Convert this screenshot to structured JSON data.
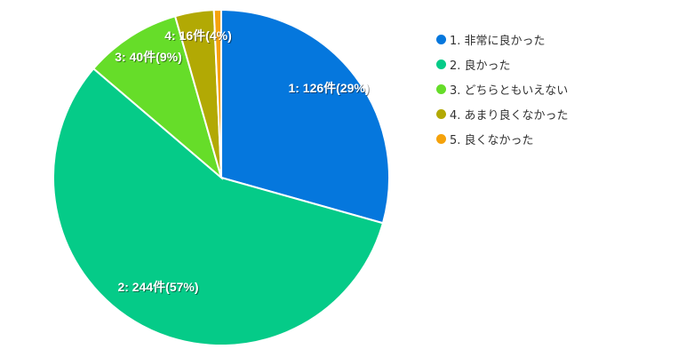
{
  "chart_data": {
    "type": "pie",
    "title": "",
    "categories": [
      "1. 非常に良かった",
      "2. 良かった",
      "3. どちらともいえない",
      "4. あまり良くなかった",
      "5. 良くなかった"
    ],
    "values": [
      126,
      244,
      40,
      16,
      3
    ],
    "percentages": [
      29,
      57,
      9,
      4,
      1
    ],
    "colors": [
      "#0577dd",
      "#05cb88",
      "#66dd29",
      "#b2a904",
      "#f5a20b"
    ],
    "data_labels": [
      "1: 126件(29%)",
      "2: 244件(57%)",
      "3: 40件(9%)",
      "4: 16件(4%)",
      ""
    ],
    "legend_position": "right",
    "start_angle": "top, clockwise"
  },
  "legend": {
    "items": [
      {
        "label": "1. 非常に良かった",
        "color": "#0577dd"
      },
      {
        "label": "2. 良かった",
        "color": "#05cb88"
      },
      {
        "label": "3. どちらともいえない",
        "color": "#66dd29"
      },
      {
        "label": "4. あまり良くなかった",
        "color": "#b2a904"
      },
      {
        "label": "5. 良くなかった",
        "color": "#f5a20b"
      }
    ]
  }
}
